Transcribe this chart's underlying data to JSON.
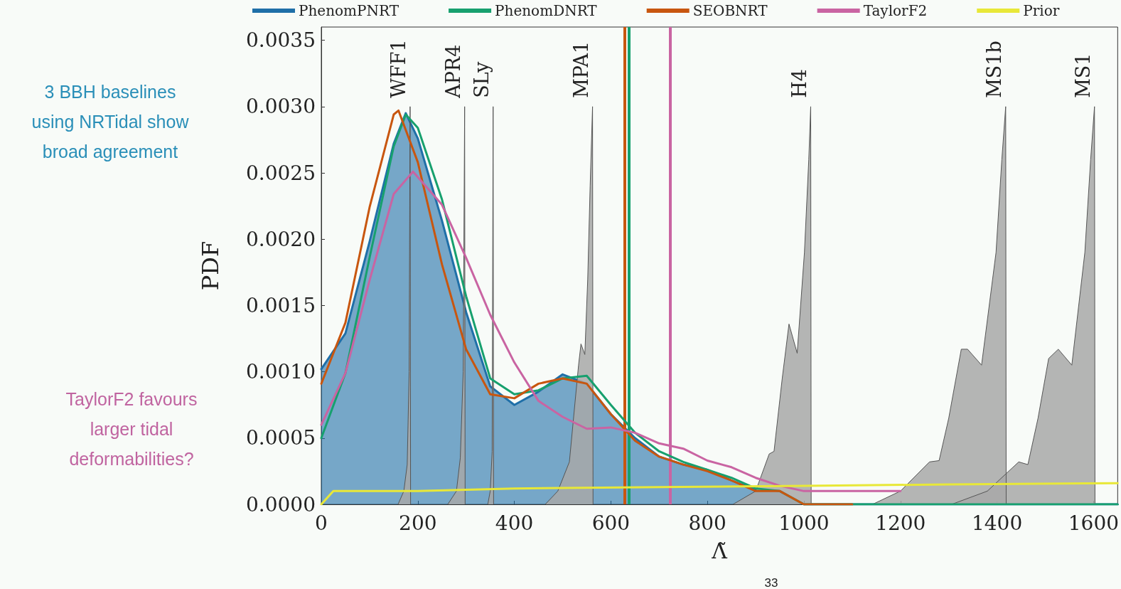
{
  "chart_data": {
    "type": "line",
    "xlabel": "Λ̃",
    "ylabel": "PDF",
    "xlim": [
      0,
      1650
    ],
    "ylim": [
      0,
      0.0036
    ],
    "xticks": [
      0,
      200,
      400,
      600,
      800,
      1000,
      1200,
      1400,
      1600
    ],
    "yticks": [
      {
        "value": 0,
        "label": "0.0000"
      },
      {
        "value": 0.0005,
        "label": "0.0005"
      },
      {
        "value": 0.001,
        "label": "0.0010"
      },
      {
        "value": 0.0015,
        "label": "0.0015"
      },
      {
        "value": 0.002,
        "label": "0.0020"
      },
      {
        "value": 0.0025,
        "label": "0.0025"
      },
      {
        "value": 0.003,
        "label": "0.0030"
      },
      {
        "value": 0.0035,
        "label": "0.0035"
      }
    ],
    "legend": "top",
    "grid": false,
    "marker": "none",
    "line_style": "solid",
    "series": [
      {
        "name": "PhenomPNRT",
        "type": "area",
        "color": "#1f6fa8",
        "x": [
          0,
          50,
          100,
          150,
          175,
          200,
          250,
          300,
          350,
          400,
          450,
          500,
          550,
          600,
          650,
          700,
          750,
          800,
          850,
          900,
          950,
          1000,
          1100,
          1650
        ],
        "values": [
          0.00102,
          0.00129,
          0.00198,
          0.00272,
          0.00295,
          0.00276,
          0.00214,
          0.00145,
          0.00089,
          0.00075,
          0.00085,
          0.00098,
          0.00091,
          0.00068,
          0.0005,
          0.00036,
          0.0003,
          0.00026,
          0.00018,
          0.00011,
          0.0001,
          0,
          0,
          0
        ]
      },
      {
        "type": "area",
        "color": "#a8a8a8",
        "x": [
          159,
          171,
          178,
          182,
          184,
          185
        ],
        "values": [
          0,
          0.0001,
          0.0003,
          0.001,
          0.003,
          0
        ]
      },
      {
        "type": "area",
        "color": "#a8a8a8",
        "x": [
          262,
          280,
          288,
          294,
          297,
          298
        ],
        "values": [
          0,
          0.0001,
          0.00035,
          0.001,
          0.003,
          0
        ]
      },
      {
        "type": "area",
        "color": "#a8a8a8",
        "x": [
          345,
          350,
          354,
          356,
          357
        ],
        "values": [
          0,
          0.0001,
          0.0004,
          0.003,
          0
        ]
      },
      {
        "type": "area",
        "color": "#a8a8a8",
        "x": [
          464,
          490,
          514,
          533,
          538,
          546,
          552,
          557,
          562,
          563
        ],
        "values": [
          0,
          0.0001,
          0.00032,
          0.00105,
          0.00121,
          0.00113,
          0.0017,
          0.0024,
          0.003,
          0
        ]
      },
      {
        "type": "area",
        "color": "#a8a8a8",
        "x": [
          853,
          900,
          928,
          938,
          955,
          969,
          986,
          1001,
          1010,
          1014,
          1015
        ],
        "values": [
          0,
          0.0001,
          0.00038,
          0.0004,
          0.00095,
          0.00136,
          0.00114,
          0.0019,
          0.0026,
          0.003,
          0
        ]
      },
      {
        "type": "area",
        "color": "#a8a8a8",
        "x": [
          1142,
          1200,
          1260,
          1280,
          1300,
          1326,
          1339,
          1368,
          1398,
          1410,
          1418,
          1419
        ],
        "values": [
          0,
          0.0001,
          0.00032,
          0.00033,
          0.00065,
          0.00117,
          0.00117,
          0.00105,
          0.0019,
          0.0026,
          0.003,
          0
        ]
      },
      {
        "type": "area",
        "color": "#a8a8a8",
        "x": [
          1306,
          1380,
          1445,
          1464,
          1485,
          1507,
          1527,
          1555,
          1582,
          1594,
          1602,
          1603
        ],
        "values": [
          0,
          0.0001,
          0.00032,
          0.0003,
          0.00065,
          0.0011,
          0.00117,
          0.00105,
          0.0019,
          0.0026,
          0.003,
          0
        ]
      },
      {
        "name": "PhenomDNRT",
        "color": "#17a06e",
        "x": [
          0,
          50,
          100,
          150,
          175,
          200,
          250,
          300,
          350,
          400,
          450,
          500,
          550,
          600,
          650,
          700,
          750,
          800,
          850,
          900,
          950,
          1000,
          1650
        ],
        "values": [
          0.0005,
          0.00099,
          0.00186,
          0.0027,
          0.00294,
          0.00284,
          0.0023,
          0.00157,
          0.00095,
          0.00083,
          0.00086,
          0.00095,
          0.00097,
          0.00075,
          0.00054,
          0.0004,
          0.00032,
          0.00026,
          0.0002,
          0.00012,
          0.0001,
          0,
          0
        ]
      },
      {
        "name": "SEOBNRT",
        "color": "#c8560f",
        "x": [
          0,
          50,
          100,
          150,
          160,
          200,
          250,
          300,
          350,
          400,
          450,
          500,
          550,
          600,
          650,
          700,
          750,
          800,
          850,
          900,
          950,
          1000,
          1100
        ],
        "values": [
          0.00091,
          0.00137,
          0.00224,
          0.00294,
          0.00297,
          0.00258,
          0.00181,
          0.00117,
          0.00083,
          0.0008,
          0.00091,
          0.00095,
          0.00091,
          0.00068,
          0.00048,
          0.00036,
          0.0003,
          0.00025,
          0.00018,
          0.0001,
          0.0001,
          0,
          0
        ]
      },
      {
        "name": "TaylorF2",
        "color": "#c964a2",
        "x": [
          0,
          50,
          100,
          150,
          190,
          250,
          300,
          350,
          400,
          450,
          500,
          550,
          600,
          650,
          700,
          750,
          800,
          850,
          900,
          950,
          1000,
          1100,
          1200
        ],
        "values": [
          0.0006,
          0.00099,
          0.00169,
          0.00234,
          0.00251,
          0.00226,
          0.00186,
          0.00143,
          0.00107,
          0.00078,
          0.00066,
          0.00057,
          0.00058,
          0.00054,
          0.00046,
          0.00042,
          0.00033,
          0.00028,
          0.0002,
          0.00014,
          0.0001,
          0.0001,
          0.0001
        ]
      },
      {
        "name": "Prior",
        "color": "#e8e838",
        "x": [
          0,
          25,
          50,
          100,
          200,
          400,
          700,
          1000,
          1300,
          1650
        ],
        "values": [
          0,
          0.0001,
          0.0001,
          0.0001,
          0.0001,
          0.00012,
          0.00013,
          0.00014,
          0.00015,
          0.00016
        ]
      }
    ],
    "ref_lines": [
      {
        "axis": "x",
        "value": 629,
        "color": "#c8560f"
      },
      {
        "axis": "x",
        "value": 638,
        "color": "#17a06e"
      },
      {
        "axis": "x",
        "value": 723,
        "color": "#c964a2"
      }
    ],
    "annotations": [
      {
        "text": "WFF1",
        "x": 184,
        "y": 0.003
      },
      {
        "text": "APR4",
        "x": 297,
        "y": 0.003
      },
      {
        "text": "SLy",
        "x": 356,
        "y": 0.003
      },
      {
        "text": "MPA1",
        "x": 562,
        "y": 0.003
      },
      {
        "text": "H4",
        "x": 1014,
        "y": 0.003
      },
      {
        "text": "MS1b",
        "x": 1418,
        "y": 0.003
      },
      {
        "text": "MS1",
        "x": 1602,
        "y": 0.003
      },
      "3 BBH baselines\nusing NRTidal show\nbroad agreement",
      "TaylorF2 favours\nlarger tidal\ndeformabilities?",
      "33"
    ]
  }
}
